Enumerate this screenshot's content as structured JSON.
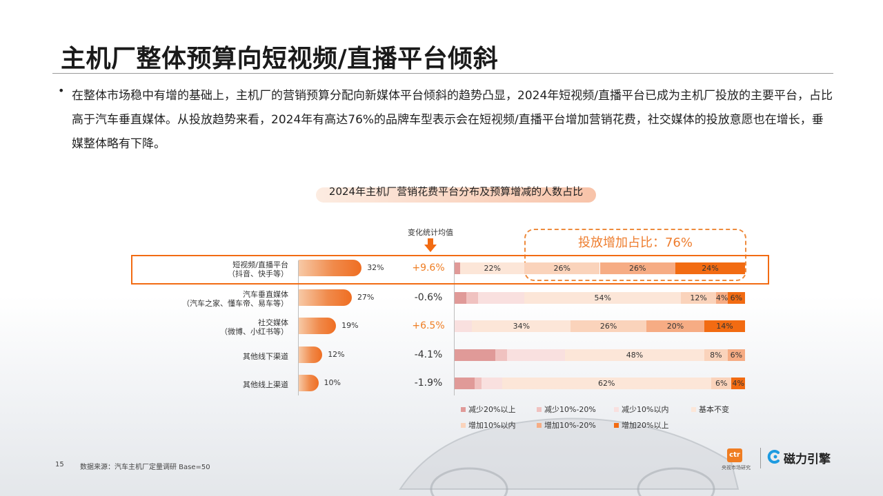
{
  "title": "主机厂整体预算向短视频/直播平台倾斜",
  "bullet": "•",
  "body": "在整体市场稳中有增的基础上，主机厂的营销预算分配向新媒体平台倾斜的趋势凸显，2024年短视频/直播平台已成为主机厂投放的主要平台，占比高于汽车垂直媒体。从投放趋势来看，2024年有高达76%的品牌车型表示会在短视频/直播平台增加营销花费，社交媒体的投放意愿也在增长，垂媒整体略有下降。",
  "avg_label": "变化统计均值",
  "highlight_label": "投放增加占比：76%",
  "footer": {
    "page": "15",
    "source": "数据来源：汽车主机厂定量调研 Base=50"
  },
  "logos": {
    "ctr": "ctr",
    "ctr_sub": "央视市场研究",
    "magnet": "磁力引擎"
  },
  "colors": {
    "dec20": "#e09a98",
    "dec10_20": "#f0c2c0",
    "dec10": "#f9e0df",
    "same": "#fce6d8",
    "inc10": "#fad3bb",
    "inc10_20": "#f6ac84",
    "inc20": "#f26b12",
    "positive": "#ef7d22",
    "negative": "#333333",
    "accent": "#f26b12"
  },
  "chart_data": {
    "type": "bar",
    "title": "2024年主机厂营销花费平台分布及预算增减的人数占比",
    "categories": [
      {
        "line1": "短视频/直播平台",
        "line2": "（抖音、快手等）"
      },
      {
        "line1": "汽车垂直媒体",
        "line2": "（汽车之家、懂车帝、易车等）"
      },
      {
        "line1": "社交媒体",
        "line2": "（微博、小红书等）"
      },
      {
        "line1": "其他线下渠道",
        "line2": ""
      },
      {
        "line1": "其他线上渠道",
        "line2": ""
      }
    ],
    "share": {
      "values": [
        32,
        27,
        19,
        12,
        10
      ],
      "labels": [
        "32%",
        "27%",
        "19%",
        "12%",
        "10%"
      ]
    },
    "avg_change": {
      "values": [
        9.6,
        -0.6,
        6.5,
        -4.1,
        -1.9
      ],
      "labels": [
        "+9.6%",
        "-0.6%",
        "+6.5%",
        "-4.1%",
        "-1.9%"
      ]
    },
    "legend": [
      "减少20%以上",
      "减少10%-20%",
      "减少10%以内",
      "基本不变",
      "增加10%以内",
      "增加10%-20%",
      "增加20%以上"
    ],
    "distribution": [
      {
        "values": [
          2,
          0,
          0,
          22,
          26,
          26,
          24
        ],
        "labels": [
          "",
          "",
          "",
          "22%",
          "26%",
          "26%",
          "24%"
        ]
      },
      {
        "values": [
          4,
          4,
          16,
          54,
          12,
          4,
          6
        ],
        "labels": [
          "",
          "",
          "",
          "54%",
          "12%",
          "4%",
          "6%"
        ]
      },
      {
        "values": [
          0,
          0,
          6,
          34,
          26,
          20,
          14
        ],
        "labels": [
          "",
          "",
          "",
          "34%",
          "26%",
          "20%",
          "14%"
        ]
      },
      {
        "values": [
          14,
          4,
          20,
          48,
          8,
          6,
          0
        ],
        "labels": [
          "",
          "",
          "",
          "48%",
          "8%",
          "6%",
          ""
        ]
      },
      {
        "values": [
          6,
          2,
          6,
          62,
          6,
          0,
          4
        ],
        "labels": [
          "",
          "",
          "",
          "62%",
          "6%",
          "",
          "4%"
        ]
      }
    ]
  }
}
